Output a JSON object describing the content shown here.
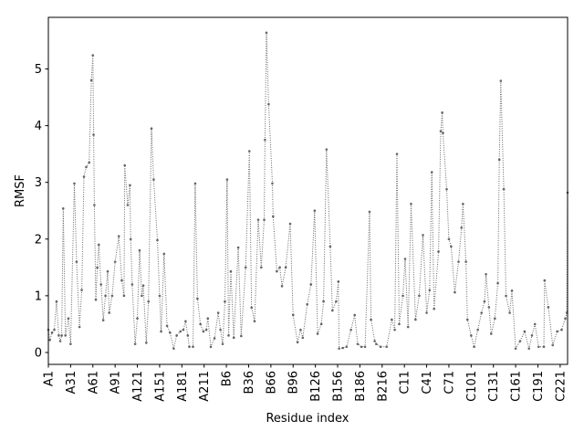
{
  "chart_data": {
    "type": "line",
    "title": "",
    "xlabel": "Residue index",
    "ylabel": "RMSF",
    "xlim": [
      0,
      700
    ],
    "ylim": [
      -0.21,
      5.91
    ],
    "yticks": [
      0,
      1,
      2,
      3,
      4,
      5
    ],
    "xticks": [
      {
        "pos": 0,
        "label": "A1"
      },
      {
        "pos": 30,
        "label": "A31"
      },
      {
        "pos": 60,
        "label": "A61"
      },
      {
        "pos": 90,
        "label": "A91"
      },
      {
        "pos": 120,
        "label": "A121"
      },
      {
        "pos": 150,
        "label": "A151"
      },
      {
        "pos": 180,
        "label": "A181"
      },
      {
        "pos": 210,
        "label": "A211"
      },
      {
        "pos": 240,
        "label": "B6"
      },
      {
        "pos": 270,
        "label": "B36"
      },
      {
        "pos": 300,
        "label": "B66"
      },
      {
        "pos": 330,
        "label": "B96"
      },
      {
        "pos": 360,
        "label": "B126"
      },
      {
        "pos": 390,
        "label": "B156"
      },
      {
        "pos": 420,
        "label": "B186"
      },
      {
        "pos": 450,
        "label": "B216"
      },
      {
        "pos": 480,
        "label": "C11"
      },
      {
        "pos": 510,
        "label": "C41"
      },
      {
        "pos": 540,
        "label": "C71"
      },
      {
        "pos": 570,
        "label": "C101"
      },
      {
        "pos": 600,
        "label": "C131"
      },
      {
        "pos": 630,
        "label": "C161"
      },
      {
        "pos": 660,
        "label": "C191"
      },
      {
        "pos": 690,
        "label": "C221"
      }
    ],
    "grid": false,
    "series": [
      {
        "name": "RMSF",
        "color": "#666666",
        "points": [
          [
            0,
            0.4
          ],
          [
            2,
            0.22
          ],
          [
            5,
            0.35
          ],
          [
            8,
            0.4
          ],
          [
            11,
            0.9
          ],
          [
            14,
            0.3
          ],
          [
            16,
            0.2
          ],
          [
            18,
            0.3
          ],
          [
            20,
            2.54
          ],
          [
            23,
            0.3
          ],
          [
            27,
            0.6
          ],
          [
            30,
            0.15
          ],
          [
            35,
            2.98
          ],
          [
            38,
            1.6
          ],
          [
            42,
            0.45
          ],
          [
            45,
            1.1
          ],
          [
            48,
            3.1
          ],
          [
            51,
            3.27
          ],
          [
            55,
            3.35
          ],
          [
            58,
            4.8
          ],
          [
            60,
            5.24
          ],
          [
            61,
            3.84
          ],
          [
            62,
            2.6
          ],
          [
            64,
            0.93
          ],
          [
            66,
            1.5
          ],
          [
            68,
            1.9
          ],
          [
            71,
            1.2
          ],
          [
            74,
            0.57
          ],
          [
            77,
            1.0
          ],
          [
            80,
            1.43
          ],
          [
            82,
            0.7
          ],
          [
            86,
            1.0
          ],
          [
            90,
            1.6
          ],
          [
            95,
            2.05
          ],
          [
            99,
            1.27
          ],
          [
            102,
            1.0
          ],
          [
            103,
            3.3
          ],
          [
            107,
            2.6
          ],
          [
            110,
            2.95
          ],
          [
            111,
            2.0
          ],
          [
            113,
            1.2
          ],
          [
            117,
            0.15
          ],
          [
            120,
            0.6
          ],
          [
            123,
            1.8
          ],
          [
            126,
            1.0
          ],
          [
            128,
            1.18
          ],
          [
            132,
            0.17
          ],
          [
            135,
            0.9
          ],
          [
            139,
            3.95
          ],
          [
            142,
            3.05
          ],
          [
            147,
            1.98
          ],
          [
            150,
            1.0
          ],
          [
            152,
            0.37
          ],
          [
            156,
            1.74
          ],
          [
            160,
            0.47
          ],
          [
            164,
            0.35
          ],
          [
            169,
            0.07
          ],
          [
            173,
            0.3
          ],
          [
            178,
            0.37
          ],
          [
            182,
            0.4
          ],
          [
            185,
            0.55
          ],
          [
            188,
            0.3
          ],
          [
            190,
            0.1
          ],
          [
            195,
            0.1
          ],
          [
            198,
            2.98
          ],
          [
            201,
            0.95
          ],
          [
            205,
            0.5
          ],
          [
            209,
            0.37
          ],
          [
            213,
            0.4
          ],
          [
            215,
            0.6
          ],
          [
            219,
            0.1
          ],
          [
            224,
            0.25
          ],
          [
            229,
            0.7
          ],
          [
            232,
            0.4
          ],
          [
            235,
            0.15
          ],
          [
            238,
            0.9
          ],
          [
            241,
            3.05
          ],
          [
            243,
            0.3
          ],
          [
            246,
            1.43
          ],
          [
            250,
            0.26
          ],
          [
            256,
            1.85
          ],
          [
            260,
            0.29
          ],
          [
            266,
            1.5
          ],
          [
            271,
            3.55
          ],
          [
            274,
            0.79
          ],
          [
            278,
            0.55
          ],
          [
            283,
            2.34
          ],
          [
            287,
            1.5
          ],
          [
            291,
            2.34
          ],
          [
            292,
            3.75
          ],
          [
            294,
            5.64
          ],
          [
            297,
            4.38
          ],
          [
            302,
            2.98
          ],
          [
            303,
            2.4
          ],
          [
            308,
            1.43
          ],
          [
            312,
            1.5
          ],
          [
            315,
            1.17
          ],
          [
            320,
            1.5
          ],
          [
            326,
            2.27
          ],
          [
            330,
            0.66
          ],
          [
            336,
            0.18
          ],
          [
            340,
            0.4
          ],
          [
            343,
            0.26
          ],
          [
            349,
            0.85
          ],
          [
            354,
            1.2
          ],
          [
            359,
            2.5
          ],
          [
            363,
            0.33
          ],
          [
            368,
            0.5
          ],
          [
            371,
            0.9
          ],
          [
            375,
            3.58
          ],
          [
            380,
            1.87
          ],
          [
            383,
            0.74
          ],
          [
            388,
            0.9
          ],
          [
            391,
            1.25
          ],
          [
            392,
            0.07
          ],
          [
            397,
            0.08
          ],
          [
            402,
            0.1
          ],
          [
            408,
            0.4
          ],
          [
            413,
            0.66
          ],
          [
            417,
            0.15
          ],
          [
            422,
            0.1
          ],
          [
            427,
            0.1
          ],
          [
            433,
            2.48
          ],
          [
            435,
            0.58
          ],
          [
            440,
            0.2
          ],
          [
            442,
            0.15
          ],
          [
            448,
            0.1
          ],
          [
            456,
            0.1
          ],
          [
            463,
            0.58
          ],
          [
            467,
            0.4
          ],
          [
            470,
            3.5
          ],
          [
            473,
            0.5
          ],
          [
            478,
            1.0
          ],
          [
            481,
            1.65
          ],
          [
            485,
            0.45
          ],
          [
            489,
            2.62
          ],
          [
            495,
            0.58
          ],
          [
            500,
            1.0
          ],
          [
            505,
            2.07
          ],
          [
            510,
            0.7
          ],
          [
            514,
            1.1
          ],
          [
            517,
            3.18
          ],
          [
            520,
            0.77
          ],
          [
            526,
            1.78
          ],
          [
            529,
            3.9
          ],
          [
            531,
            4.23
          ],
          [
            532,
            3.87
          ],
          [
            537,
            2.88
          ],
          [
            540,
            2.0
          ],
          [
            543,
            1.87
          ],
          [
            548,
            1.06
          ],
          [
            553,
            1.6
          ],
          [
            557,
            2.2
          ],
          [
            559,
            2.62
          ],
          [
            563,
            1.6
          ],
          [
            565,
            0.58
          ],
          [
            570,
            0.3
          ],
          [
            574,
            0.1
          ],
          [
            579,
            0.4
          ],
          [
            584,
            0.7
          ],
          [
            588,
            0.9
          ],
          [
            590,
            1.38
          ],
          [
            594,
            0.8
          ],
          [
            597,
            0.33
          ],
          [
            602,
            0.6
          ],
          [
            606,
            1.22
          ],
          [
            608,
            3.4
          ],
          [
            610,
            4.79
          ],
          [
            614,
            2.88
          ],
          [
            617,
            1.0
          ],
          [
            622,
            0.7
          ],
          [
            625,
            1.09
          ],
          [
            630,
            0.07
          ],
          [
            636,
            0.2
          ],
          [
            642,
            0.37
          ],
          [
            648,
            0.07
          ],
          [
            652,
            0.3
          ],
          [
            656,
            0.5
          ],
          [
            661,
            0.1
          ],
          [
            668,
            0.1
          ],
          [
            669,
            1.27
          ],
          [
            674,
            0.8
          ],
          [
            680,
            0.13
          ],
          [
            686,
            0.37
          ],
          [
            692,
            0.4
          ],
          [
            697,
            0.6
          ],
          [
            699,
            0.7
          ],
          [
            700,
            2.82
          ]
        ]
      }
    ]
  }
}
